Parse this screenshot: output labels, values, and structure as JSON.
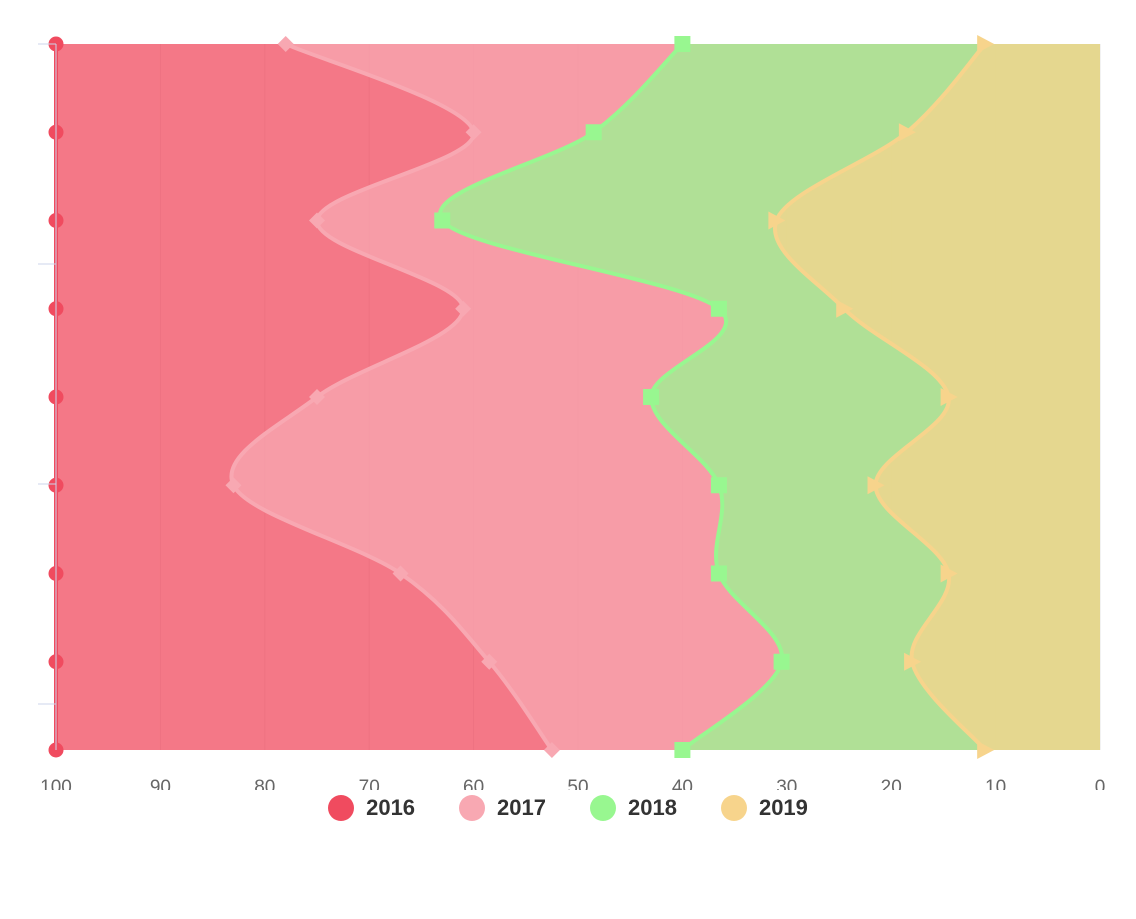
{
  "chart_data": {
    "type": "area",
    "orientation": "horizontal",
    "stacking": "percent",
    "xlim": [
      100,
      0
    ],
    "x_ticks": [
      "100",
      "90",
      "80",
      "70",
      "60",
      "50",
      "40",
      "30",
      "20",
      "10",
      "0"
    ],
    "grid": true,
    "legend_position": "bottom",
    "series": [
      {
        "name": "2016",
        "color": "#f04b5f",
        "marker": "circle",
        "cumulative_percent": [
          100,
          100,
          100,
          100,
          100,
          100,
          100,
          100,
          100
        ]
      },
      {
        "name": "2017",
        "color": "#f8a8b2",
        "marker": "diamond",
        "cumulative_percent": [
          78,
          60,
          75,
          61,
          75,
          83,
          67,
          58.5,
          52.5
        ]
      },
      {
        "name": "2018",
        "color": "#98f790",
        "marker": "square",
        "cumulative_percent": [
          40,
          48.5,
          63,
          36.5,
          43,
          36.5,
          36.5,
          30.5,
          40
        ]
      },
      {
        "name": "2019",
        "color": "#f7d48c",
        "marker": "triangle",
        "cumulative_percent": [
          11,
          18.5,
          31,
          24.5,
          14.5,
          21.5,
          14.5,
          18,
          11
        ]
      }
    ]
  },
  "legend": {
    "items": [
      {
        "label": "2016",
        "color": "#f04b5f"
      },
      {
        "label": "2017",
        "color": "#f8a8b2"
      },
      {
        "label": "2018",
        "color": "#98f790"
      },
      {
        "label": "2019",
        "color": "#f7d48c"
      }
    ]
  }
}
